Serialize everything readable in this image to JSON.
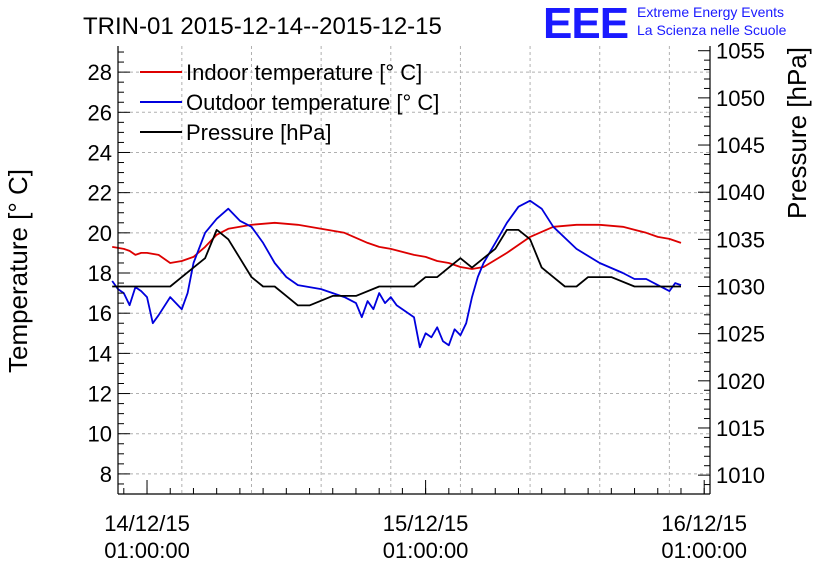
{
  "header": {
    "title": "TRIN-01 2015-12-14--2015-12-15",
    "logo_mark": "EEE",
    "logo_line1": "Extreme Energy Events",
    "logo_line2": "La Scienza nelle Scuole"
  },
  "chart_data": {
    "type": "line",
    "title": "TRIN-01 2015-12-14--2015-12-15",
    "ylabel": "Temperature [° C]",
    "y2label": "Pressure [hPa]",
    "xlim": [
      "2015-12-13 22:30",
      "2015-12-16 01:30"
    ],
    "ylim": [
      7,
      29.3
    ],
    "y2lim": [
      1008,
      1055.5
    ],
    "x_ticks": [
      {
        "label_date": "14/12/15",
        "label_time": "01:00:00",
        "x": "2015-12-14 01:00"
      },
      {
        "label_date": "15/12/15",
        "label_time": "01:00:00",
        "x": "2015-12-15 01:00"
      },
      {
        "label_date": "16/12/15",
        "label_time": "01:00:00",
        "x": "2015-12-16 01:00"
      }
    ],
    "y_ticks": [
      8,
      10,
      12,
      14,
      16,
      18,
      20,
      22,
      24,
      26,
      28
    ],
    "y2_ticks": [
      1010,
      1015,
      1020,
      1025,
      1030,
      1035,
      1040,
      1045,
      1050,
      1055
    ],
    "grid": true,
    "legend_position": "top-left",
    "series": [
      {
        "name": "Indoor temperature [° C]",
        "axis": "left",
        "color": "#dd0000",
        "x": [
          "2015-12-13 22:00",
          "2015-12-13 23:00",
          "2015-12-13 23:30",
          "2015-12-14 00:00",
          "2015-12-14 00:30",
          "2015-12-14 01:00",
          "2015-12-14 02:00",
          "2015-12-14 03:00",
          "2015-12-14 04:00",
          "2015-12-14 05:00",
          "2015-12-14 06:00",
          "2015-12-14 07:00",
          "2015-12-14 08:00",
          "2015-12-14 10:00",
          "2015-12-14 12:00",
          "2015-12-14 14:00",
          "2015-12-14 16:00",
          "2015-12-14 18:00",
          "2015-12-14 20:00",
          "2015-12-14 21:00",
          "2015-12-14 22:00",
          "2015-12-15 00:00",
          "2015-12-15 01:00",
          "2015-12-15 02:00",
          "2015-12-15 03:00",
          "2015-12-15 04:00",
          "2015-12-15 05:00",
          "2015-12-15 06:00",
          "2015-12-15 08:00",
          "2015-12-15 10:00",
          "2015-12-15 12:00",
          "2015-12-15 14:00",
          "2015-12-15 16:00",
          "2015-12-15 18:00",
          "2015-12-15 20:00",
          "2015-12-15 21:00",
          "2015-12-15 22:00",
          "2015-12-15 23:00"
        ],
        "y": [
          19.3,
          19.2,
          19.1,
          18.9,
          19.0,
          19.0,
          18.9,
          18.5,
          18.6,
          18.8,
          19.3,
          19.9,
          20.2,
          20.4,
          20.5,
          20.4,
          20.2,
          20.0,
          19.5,
          19.3,
          19.2,
          18.9,
          18.8,
          18.6,
          18.5,
          18.3,
          18.2,
          18.3,
          19.0,
          19.8,
          20.3,
          20.4,
          20.4,
          20.3,
          20.0,
          19.8,
          19.7,
          19.5
        ]
      },
      {
        "name": "Outdoor temperature [° C]",
        "axis": "left",
        "color": "#0000dd",
        "x": [
          "2015-12-13 22:00",
          "2015-12-13 22:30",
          "2015-12-13 23:00",
          "2015-12-13 23:30",
          "2015-12-14 00:00",
          "2015-12-14 00:30",
          "2015-12-14 01:00",
          "2015-12-14 01:30",
          "2015-12-14 02:00",
          "2015-12-14 03:00",
          "2015-12-14 04:00",
          "2015-12-14 04:30",
          "2015-12-14 05:00",
          "2015-12-14 06:00",
          "2015-12-14 07:00",
          "2015-12-14 08:00",
          "2015-12-14 09:00",
          "2015-12-14 10:00",
          "2015-12-14 11:00",
          "2015-12-14 12:00",
          "2015-12-14 13:00",
          "2015-12-14 14:00",
          "2015-12-14 16:00",
          "2015-12-14 18:00",
          "2015-12-14 19:00",
          "2015-12-14 19:30",
          "2015-12-14 20:00",
          "2015-12-14 20:30",
          "2015-12-14 21:00",
          "2015-12-14 21:30",
          "2015-12-14 22:00",
          "2015-12-14 22:30",
          "2015-12-15 00:00",
          "2015-12-15 00:30",
          "2015-12-15 01:00",
          "2015-12-15 01:30",
          "2015-12-15 02:00",
          "2015-12-15 02:30",
          "2015-12-15 03:00",
          "2015-12-15 03:30",
          "2015-12-15 04:00",
          "2015-12-15 04:30",
          "2015-12-15 05:00",
          "2015-12-15 05:30",
          "2015-12-15 06:00",
          "2015-12-15 07:00",
          "2015-12-15 08:00",
          "2015-12-15 09:00",
          "2015-12-15 10:00",
          "2015-12-15 11:00",
          "2015-12-15 12:00",
          "2015-12-15 14:00",
          "2015-12-15 16:00",
          "2015-12-15 18:00",
          "2015-12-15 19:00",
          "2015-12-15 20:00",
          "2015-12-15 21:00",
          "2015-12-15 22:00",
          "2015-12-15 22:30",
          "2015-12-15 23:00"
        ],
        "y": [
          17.6,
          17.2,
          17.0,
          16.4,
          17.3,
          17.1,
          16.8,
          15.5,
          15.9,
          16.8,
          16.2,
          17.0,
          18.5,
          20.0,
          20.7,
          21.2,
          20.6,
          20.3,
          19.5,
          18.5,
          17.8,
          17.4,
          17.2,
          16.8,
          16.5,
          15.8,
          16.6,
          16.2,
          17.0,
          16.5,
          16.8,
          16.4,
          15.8,
          14.3,
          15.0,
          14.8,
          15.3,
          14.6,
          14.4,
          15.2,
          14.9,
          15.5,
          16.8,
          17.8,
          18.5,
          19.5,
          20.5,
          21.3,
          21.6,
          21.2,
          20.3,
          19.2,
          18.5,
          18.0,
          17.7,
          17.7,
          17.4,
          17.1,
          17.5,
          17.4
        ]
      },
      {
        "name": "Pressure [hPa]",
        "axis": "right",
        "color": "#000000",
        "x": [
          "2015-12-13 22:00",
          "2015-12-14 01:00",
          "2015-12-14 02:00",
          "2015-12-14 03:00",
          "2015-12-14 04:00",
          "2015-12-14 05:00",
          "2015-12-14 06:00",
          "2015-12-14 07:00",
          "2015-12-14 08:00",
          "2015-12-14 09:00",
          "2015-12-14 10:00",
          "2015-12-14 11:00",
          "2015-12-14 12:00",
          "2015-12-14 13:00",
          "2015-12-14 14:00",
          "2015-12-14 15:00",
          "2015-12-14 17:00",
          "2015-12-14 19:00",
          "2015-12-14 21:00",
          "2015-12-14 22:00",
          "2015-12-14 23:00",
          "2015-12-15 00:00",
          "2015-12-15 01:00",
          "2015-12-15 02:00",
          "2015-12-15 03:00",
          "2015-12-15 04:00",
          "2015-12-15 05:00",
          "2015-12-15 06:00",
          "2015-12-15 07:00",
          "2015-12-15 08:00",
          "2015-12-15 09:00",
          "2015-12-15 10:00",
          "2015-12-15 11:00",
          "2015-12-15 12:00",
          "2015-12-15 13:00",
          "2015-12-15 14:00",
          "2015-12-15 15:00",
          "2015-12-15 17:00",
          "2015-12-15 19:00",
          "2015-12-15 21:00",
          "2015-12-15 23:00"
        ],
        "y": [
          1030,
          1030,
          1030,
          1030,
          1031,
          1032,
          1033,
          1036,
          1035,
          1033,
          1031,
          1030,
          1030,
          1029,
          1028,
          1028,
          1029,
          1029,
          1030,
          1030,
          1030,
          1030,
          1031,
          1031,
          1032,
          1033,
          1032,
          1033,
          1034,
          1036,
          1036,
          1035,
          1032,
          1031,
          1030,
          1030,
          1031,
          1031,
          1030,
          1030,
          1030
        ]
      }
    ]
  }
}
